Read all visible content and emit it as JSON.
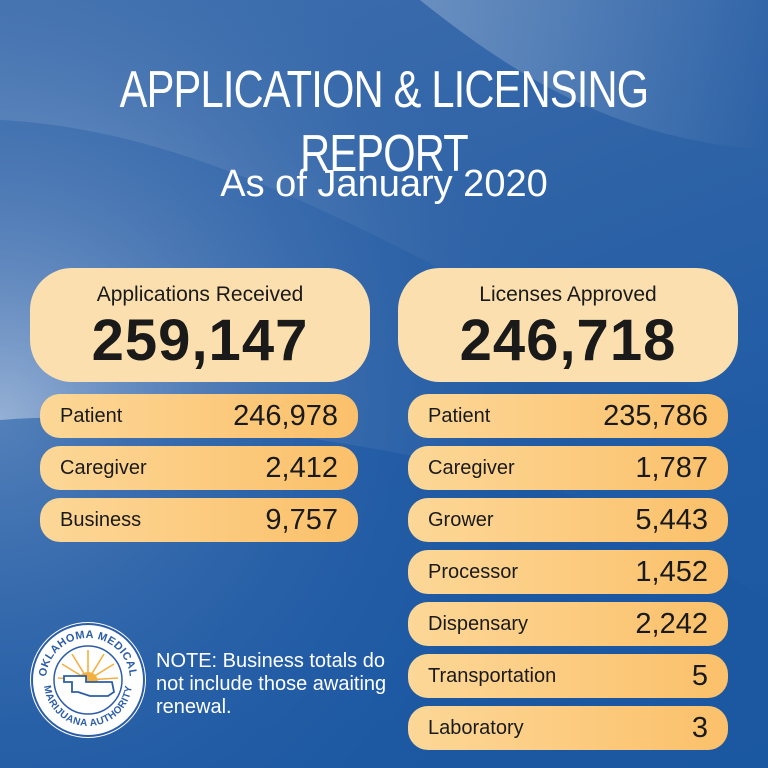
{
  "header": {
    "title": "APPLICATION & LICENSING REPORT",
    "subtitle": "As of January 2020"
  },
  "applications": {
    "label": "Applications Received",
    "total": "259,147",
    "rows": [
      {
        "label": "Patient",
        "value": "246,978"
      },
      {
        "label": "Caregiver",
        "value": "2,412"
      },
      {
        "label": "Business",
        "value": "9,757"
      }
    ]
  },
  "licenses": {
    "label": "Licenses Approved",
    "total": "246,718",
    "rows": [
      {
        "label": "Patient",
        "value": "235,786"
      },
      {
        "label": "Caregiver",
        "value": "1,787"
      },
      {
        "label": "Grower",
        "value": "5,443"
      },
      {
        "label": "Processor",
        "value": "1,452"
      },
      {
        "label": "Dispensary",
        "value": "2,242"
      },
      {
        "label": "Transportation",
        "value": "5"
      },
      {
        "label": "Laboratory",
        "value": "3"
      }
    ]
  },
  "logo": {
    "text_top": "OKLAHOMA MEDICAL",
    "text_bottom": "MARIJUANA AUTHORITY"
  },
  "note": "NOTE: Business totals do not include those awaiting renewal.",
  "colors": {
    "background": "#2d62a6",
    "card": "#fbdfae",
    "row_light": "#fcd797",
    "row_dark": "#fbc06a",
    "text_dark": "#1a1a1a",
    "text_light": "#ffffff"
  }
}
